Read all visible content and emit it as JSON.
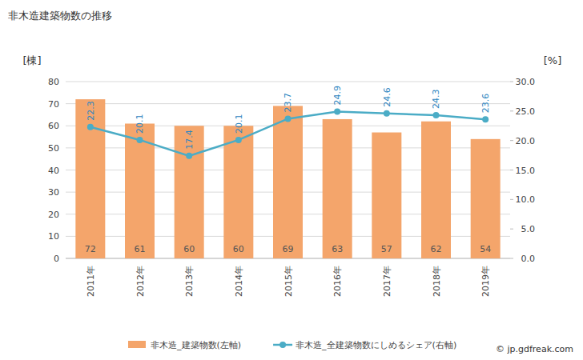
{
  "chart_data": {
    "type": "bar",
    "title": "非木造建築物数の推移",
    "y_label": "[棟]",
    "y2_label": "[%]",
    "categories": [
      "2011年",
      "2012年",
      "2013年",
      "2014年",
      "2015年",
      "2016年",
      "2017年",
      "2018年",
      "2019年"
    ],
    "series": [
      {
        "name": "非木造_建築物数(左軸)",
        "type": "bar",
        "color": "#f4a56b",
        "values": [
          72,
          61,
          60,
          60,
          69,
          63,
          57,
          62,
          54
        ]
      },
      {
        "name": "非木造_全建築物数にしめるシェア(右軸)",
        "type": "line",
        "axis": "y2",
        "color": "#4bacc6",
        "marker": "circle",
        "values": [
          22.3,
          20.1,
          17.4,
          20.1,
          23.7,
          24.9,
          24.6,
          24.3,
          23.6
        ]
      }
    ],
    "ylim": [
      0,
      80
    ],
    "yticks": [
      0,
      10,
      20,
      30,
      40,
      50,
      60,
      70,
      80
    ],
    "y2lim": [
      0,
      30
    ],
    "y2ticks": [
      {
        "value": 0,
        "label": "0.0"
      },
      {
        "value": 5,
        "label": "5.0"
      },
      {
        "value": 10,
        "label": "10.0"
      },
      {
        "value": 15,
        "label": "15.0"
      },
      {
        "value": 20,
        "label": "20.0"
      },
      {
        "value": 25,
        "label": "25.0"
      },
      {
        "value": 30,
        "label": "30.0"
      }
    ],
    "grid": true,
    "data_labels": true,
    "legend": "bottom",
    "source": "© jp.gdfreak.com"
  }
}
